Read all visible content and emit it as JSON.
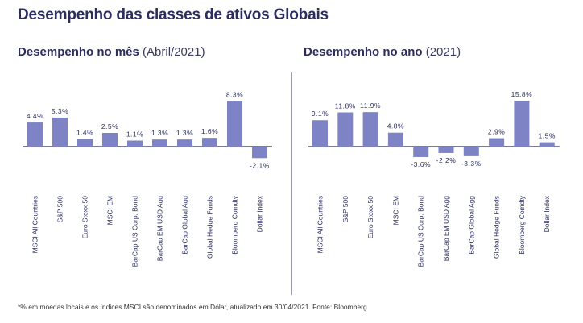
{
  "title": "Desempenho das classes de ativos Globais",
  "footnote": "*% em moedas locais e os índices MSCI são denominados em Dólar, atualizado em 30/04/2021. Fonte: Bloomberg",
  "colors": {
    "bar": "#7d83c4",
    "baseline": "#2b2d5e",
    "text": "#2b2d5e"
  },
  "chart_data": [
    {
      "type": "bar",
      "title": "Desempenho no mês",
      "subtitle": "(Abril/2021)",
      "categories": [
        "MSCI  All Countries",
        "S&P 500",
        "Euro Stoxx 50",
        "MSCI EM",
        "BarCap US Corp. Bond",
        "BarCap EM USD Agg",
        "BarCap Global Agg",
        "Global Hedge Funds",
        "Bloomberg Comdty",
        "Dollar Index"
      ],
      "values": [
        4.4,
        5.3,
        1.4,
        2.5,
        1.1,
        1.3,
        1.3,
        1.6,
        8.3,
        -2.1
      ],
      "labels": [
        "4.4%",
        "5.3%",
        "1.4%",
        "2.5%",
        "1.1%",
        "1.3%",
        "1.3%",
        "1.6%",
        "8.3%",
        "-2.1%"
      ]
    },
    {
      "type": "bar",
      "title": "Desempenho no ano",
      "subtitle": "(2021)",
      "categories": [
        "MSCI  All Countries",
        "S&P 500",
        "Euro Stoxx 50",
        "MSCI EM",
        "BarCap US Corp. Bond",
        "BarCap EM USD Agg",
        "BarCap Global Agg",
        "Global Hedge Funds",
        "Bloomberg Comdty",
        "Dollar Index"
      ],
      "values": [
        9.1,
        11.8,
        11.9,
        4.8,
        -3.6,
        -2.2,
        -3.3,
        2.9,
        15.8,
        1.5
      ],
      "labels": [
        "9.1%",
        "11.8%",
        "11.9%",
        "4.8%",
        "-3.6%",
        "-2.2%",
        "-3.3%",
        "2.9%",
        "15.8%",
        "1.5%"
      ]
    }
  ]
}
